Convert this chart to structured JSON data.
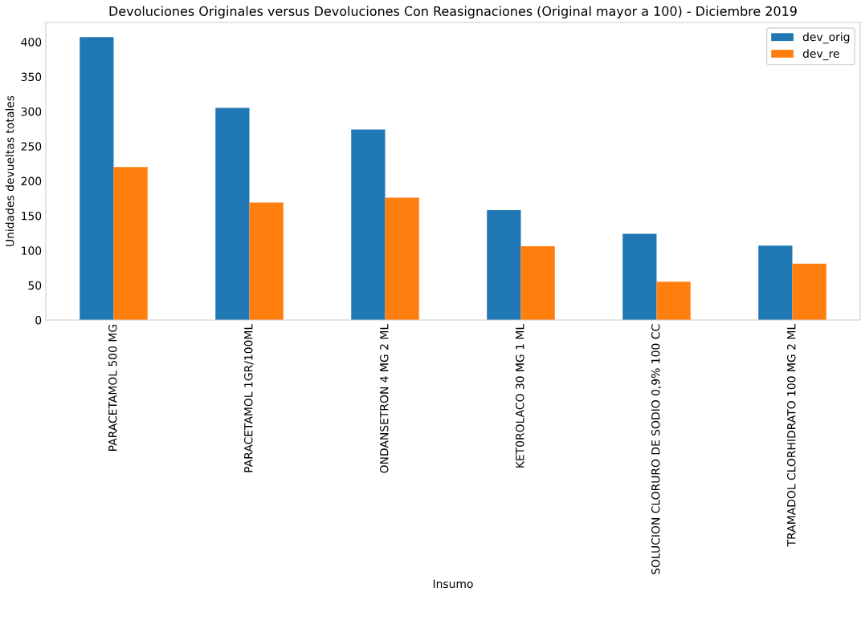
{
  "chart_data": {
    "type": "bar",
    "title": "Devoluciones Originales versus Devoluciones Con Reasignaciones (Original mayor a 100) - Diciembre 2019",
    "xlabel": "Insumo",
    "ylabel": "Unidades devueltas totales",
    "categories": [
      "PARACETAMOL 500 MG",
      "PARACETAMOL 1GR/100ML",
      "ONDANSETRON 4 MG 2 ML",
      "KET0ROLACO 30 MG 1 ML",
      "SOLUCION CLORURO DE SODIO 0,9% 100 CC",
      "TRAMADOL CLORHIDRATO 100 MG 2 ML"
    ],
    "series": [
      {
        "name": "dev_orig",
        "color": "#1f77b4",
        "values": [
          407,
          305,
          274,
          158,
          124,
          107
        ]
      },
      {
        "name": "dev_re",
        "color": "#ff7f0e",
        "values": [
          220,
          169,
          176,
          106,
          55,
          81
        ]
      }
    ],
    "ylim": [
      0,
      428
    ],
    "yticks": [
      0,
      50,
      100,
      150,
      200,
      250,
      300,
      350,
      400
    ],
    "grid": false,
    "legend": "top right"
  }
}
